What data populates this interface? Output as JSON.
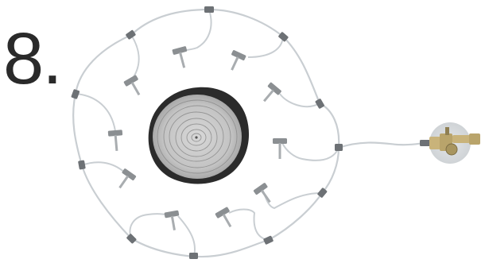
{
  "step": {
    "number": "8."
  },
  "diagram": {
    "components": [
      {
        "name": "tree-stump-cross-section-icon"
      },
      {
        "name": "irrigation-loop-tubing"
      },
      {
        "name": "tee-connector-icon"
      },
      {
        "name": "drip-emitter-stake-icon"
      },
      {
        "name": "supply-line-tubing"
      },
      {
        "name": "faucet-valve-assembly-icon"
      }
    ],
    "colors": {
      "tubing": "#c9ced2",
      "connector": "#6d7175",
      "emitter": "#8b8f92",
      "stump_bark": "#2b2b2b",
      "stump_wood": "#c6c6c6",
      "valve_brass": "#c9b37a",
      "valve_halo": "#d9dbde"
    }
  }
}
